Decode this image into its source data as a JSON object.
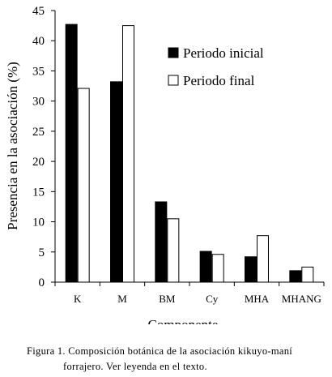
{
  "chart_data": {
    "type": "bar",
    "categories": [
      "K",
      "M",
      "BM",
      "Cy",
      "MHA",
      "MHANG"
    ],
    "series": [
      {
        "name": "Periodo inicial",
        "color": "#000000",
        "values": [
          42.7,
          33.2,
          13.3,
          5.1,
          4.2,
          1.9
        ]
      },
      {
        "name": "Periodo final",
        "color": "#ffffff",
        "values": [
          32.1,
          42.5,
          10.5,
          4.6,
          7.7,
          2.5
        ]
      }
    ],
    "xlabel": "Componente",
    "ylabel": "Presencia en la asociación (%)",
    "ylim": [
      0,
      45
    ],
    "yticks": [
      0,
      5,
      10,
      15,
      20,
      25,
      30,
      35,
      40,
      45
    ],
    "grid": false,
    "legend_position": "top-right"
  },
  "caption": {
    "line1": "Figura 1. Composición botánica de la asociación kikuyo-maní",
    "line2": "forrajero. Ver leyenda en el texto."
  }
}
